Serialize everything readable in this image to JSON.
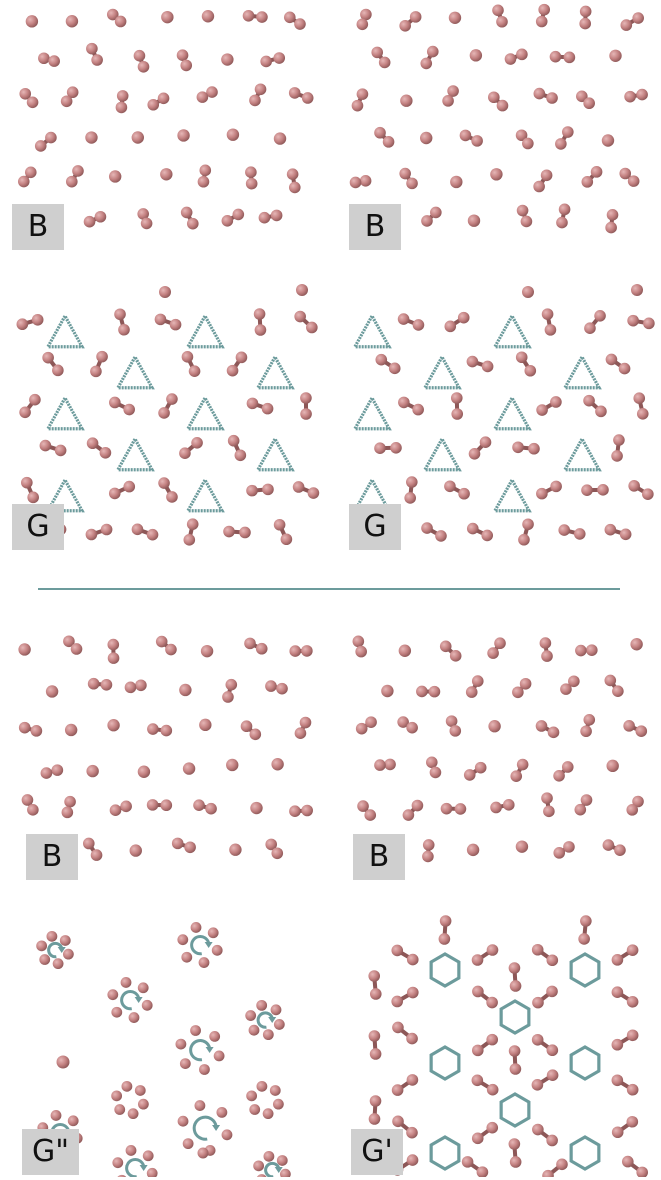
{
  "colors": {
    "atom": "#c48282",
    "atom_highlight": "#e6b7b7",
    "atom_shadow": "#8d5757",
    "overlay": "#6c9b9c",
    "label_bg": "#cfcfcf",
    "divider": "#6c9b9c"
  },
  "panels": [
    {
      "id": "top-left-b",
      "label": "B",
      "kind": "atoms-disordered"
    },
    {
      "id": "top-right-b",
      "label": "B",
      "kind": "atoms-disordered"
    },
    {
      "id": "top-left-g",
      "label": "G",
      "kind": "triangles"
    },
    {
      "id": "top-right-g",
      "label": "G",
      "kind": "triangles"
    },
    {
      "id": "bottom-left-b",
      "label": "B",
      "kind": "atoms-disordered"
    },
    {
      "id": "bottom-right-b",
      "label": "B",
      "kind": "atoms-disordered"
    },
    {
      "id": "bottom-left-g2",
      "label": "G\"",
      "kind": "rings"
    },
    {
      "id": "bottom-right-g1",
      "label": "G'",
      "kind": "hexagons"
    }
  ]
}
